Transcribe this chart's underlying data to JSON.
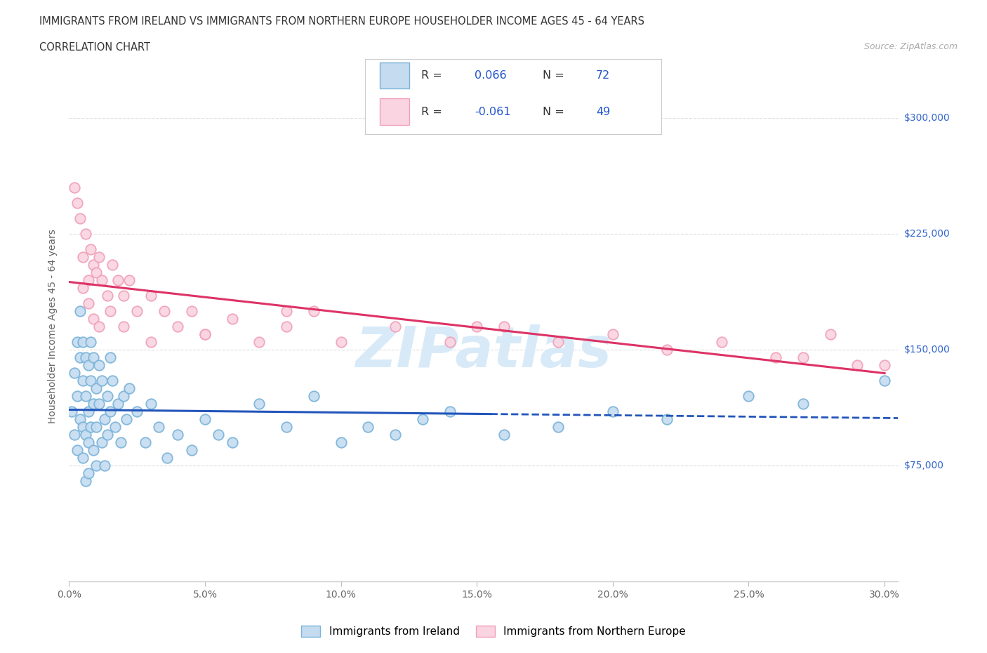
{
  "title_line1": "IMMIGRANTS FROM IRELAND VS IMMIGRANTS FROM NORTHERN EUROPE HOUSEHOLDER INCOME AGES 45 - 64 YEARS",
  "title_line2": "CORRELATION CHART",
  "source_text": "Source: ZipAtlas.com",
  "ylabel": "Householder Income Ages 45 - 64 years",
  "xlim": [
    0.0,
    0.305
  ],
  "ylim": [
    0,
    330000
  ],
  "ytick_vals": [
    0,
    75000,
    150000,
    225000,
    300000
  ],
  "hline_vals": [
    75000,
    150000,
    225000,
    300000
  ],
  "blue_color": "#7ab3d9",
  "blue_fill": "#c5dcf0",
  "pink_color": "#f0a0b8",
  "pink_fill": "#fad4e0",
  "blue_line_color": "#2255bb",
  "pink_line_color": "#dd3366",
  "legend_label1": "Immigrants from Ireland",
  "legend_label2": "Immigrants from Northern Europe",
  "blue_R": 0.066,
  "pink_R": -0.061,
  "blue_N": 72,
  "pink_N": 49,
  "blue_scatter_x": [
    0.001,
    0.002,
    0.002,
    0.003,
    0.003,
    0.003,
    0.004,
    0.004,
    0.004,
    0.005,
    0.005,
    0.005,
    0.005,
    0.006,
    0.006,
    0.006,
    0.006,
    0.007,
    0.007,
    0.007,
    0.007,
    0.008,
    0.008,
    0.008,
    0.009,
    0.009,
    0.009,
    0.01,
    0.01,
    0.01,
    0.011,
    0.011,
    0.012,
    0.012,
    0.013,
    0.013,
    0.014,
    0.014,
    0.015,
    0.015,
    0.016,
    0.017,
    0.018,
    0.019,
    0.02,
    0.021,
    0.022,
    0.025,
    0.028,
    0.03,
    0.033,
    0.036,
    0.04,
    0.045,
    0.05,
    0.055,
    0.06,
    0.07,
    0.08,
    0.09,
    0.1,
    0.11,
    0.12,
    0.13,
    0.14,
    0.16,
    0.18,
    0.2,
    0.22,
    0.25,
    0.27,
    0.3
  ],
  "blue_scatter_y": [
    110000,
    135000,
    95000,
    155000,
    120000,
    85000,
    145000,
    105000,
    175000,
    130000,
    100000,
    155000,
    80000,
    120000,
    145000,
    95000,
    65000,
    140000,
    110000,
    90000,
    70000,
    130000,
    155000,
    100000,
    145000,
    115000,
    85000,
    125000,
    100000,
    75000,
    115000,
    140000,
    90000,
    130000,
    105000,
    75000,
    120000,
    95000,
    145000,
    110000,
    130000,
    100000,
    115000,
    90000,
    120000,
    105000,
    125000,
    110000,
    90000,
    115000,
    100000,
    80000,
    95000,
    85000,
    105000,
    95000,
    90000,
    115000,
    100000,
    120000,
    90000,
    100000,
    95000,
    105000,
    110000,
    95000,
    100000,
    110000,
    105000,
    120000,
    115000,
    130000
  ],
  "pink_scatter_x": [
    0.002,
    0.003,
    0.004,
    0.005,
    0.006,
    0.007,
    0.008,
    0.009,
    0.01,
    0.011,
    0.012,
    0.014,
    0.016,
    0.018,
    0.02,
    0.022,
    0.025,
    0.03,
    0.035,
    0.04,
    0.045,
    0.05,
    0.06,
    0.07,
    0.08,
    0.09,
    0.1,
    0.12,
    0.14,
    0.16,
    0.18,
    0.2,
    0.22,
    0.24,
    0.26,
    0.27,
    0.28,
    0.29,
    0.3,
    0.005,
    0.007,
    0.009,
    0.011,
    0.015,
    0.02,
    0.03,
    0.05,
    0.08,
    0.15
  ],
  "pink_scatter_y": [
    255000,
    245000,
    235000,
    210000,
    225000,
    195000,
    215000,
    205000,
    200000,
    210000,
    195000,
    185000,
    205000,
    195000,
    185000,
    195000,
    175000,
    185000,
    175000,
    165000,
    175000,
    160000,
    170000,
    155000,
    165000,
    175000,
    155000,
    165000,
    155000,
    165000,
    155000,
    160000,
    150000,
    155000,
    145000,
    145000,
    160000,
    140000,
    140000,
    190000,
    180000,
    170000,
    165000,
    175000,
    165000,
    155000,
    160000,
    175000,
    165000
  ]
}
